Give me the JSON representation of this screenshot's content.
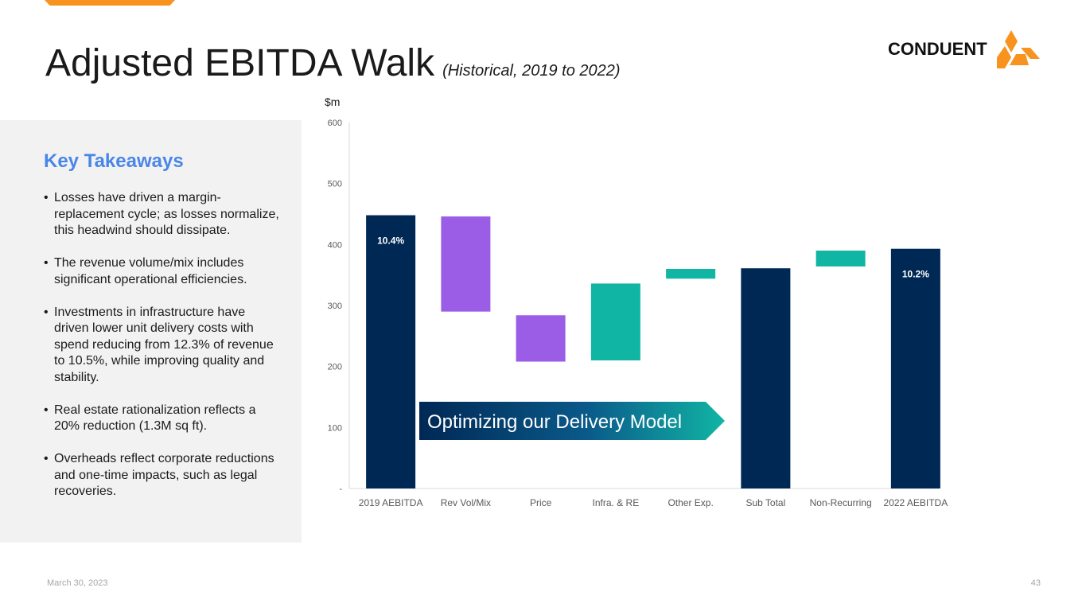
{
  "header": {
    "title": "Adjusted EBITDA Walk",
    "subtitle": "(Historical, 2019 to 2022)"
  },
  "logo": {
    "text": "CONDUENT",
    "icon": "conduent-logo-icon"
  },
  "panel": {
    "title": "Key Takeaways",
    "bullets": [
      "Losses have driven a margin-replacement cycle; as losses normalize, this headwind should dissipate.",
      "The revenue volume/mix includes significant operational efficiencies.",
      "Investments in infrastructure have driven lower unit delivery costs with spend reducing from 12.3% of revenue to 10.5%, while improving quality and stability.",
      "Real estate rationalization reflects a 20% reduction (1.3M sq ft).",
      "Overheads reflect corporate reductions and one-time impacts, such as legal recoveries."
    ]
  },
  "chart_data": {
    "type": "bar",
    "subtype": "waterfall",
    "unit_label": "$m",
    "categories": [
      "2019 AEBITDA",
      "Rev Vol/Mix",
      "Price",
      "Infra. & RE",
      "Other Exp.",
      "Sub Total",
      "Non-Recurring",
      "2022 AEBITDA"
    ],
    "ylim": [
      0,
      600
    ],
    "yticks": [
      0,
      100,
      200,
      300,
      400,
      500,
      600
    ],
    "ytick_labels": [
      "-",
      "100",
      "200",
      "300",
      "400",
      "500",
      "600"
    ],
    "bars": [
      {
        "category": "2019 AEBITDA",
        "kind": "total",
        "low": 0,
        "high": 448,
        "label": "10.4%"
      },
      {
        "category": "Rev Vol/Mix",
        "kind": "decrease",
        "low": 290,
        "high": 446,
        "label": ""
      },
      {
        "category": "Price",
        "kind": "decrease",
        "low": 208,
        "high": 284,
        "label": ""
      },
      {
        "category": "Infra. & RE",
        "kind": "increase",
        "low": 210,
        "high": 336,
        "label": ""
      },
      {
        "category": "Other Exp.",
        "kind": "increase",
        "low": 344,
        "high": 360,
        "label": ""
      },
      {
        "category": "Sub Total",
        "kind": "total",
        "low": 0,
        "high": 361,
        "label": ""
      },
      {
        "category": "Non-Recurring",
        "kind": "increase",
        "low": 364,
        "high": 390,
        "label": ""
      },
      {
        "category": "2022 AEBITDA",
        "kind": "total",
        "low": 0,
        "high": 393,
        "label": "10.2%"
      }
    ],
    "colors": {
      "total": "#002855",
      "decrease": "#9b5de5",
      "increase": "#11b5a4"
    },
    "callout": "Optimizing our Delivery Model"
  },
  "footer": {
    "date": "March 30, 2023",
    "page": "43"
  }
}
